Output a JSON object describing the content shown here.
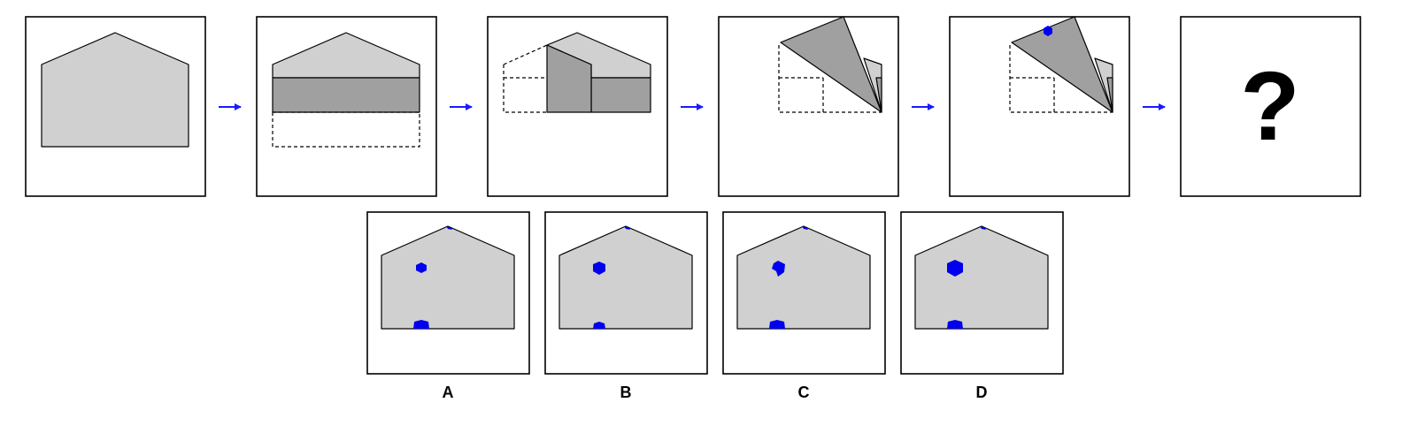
{
  "question_mark": "?",
  "options": [
    {
      "label": "A"
    },
    {
      "label": "B"
    },
    {
      "label": "C"
    },
    {
      "label": "D"
    }
  ],
  "colors": {
    "paper": "#d0d0d0",
    "folded_layer": "#a0a0a0",
    "hole": "#0000ee",
    "arrow": "#1a1aff",
    "outline": "#000000"
  },
  "icons": {
    "arrow": "right-arrow-icon",
    "hole": "hexagon-hole-icon"
  }
}
